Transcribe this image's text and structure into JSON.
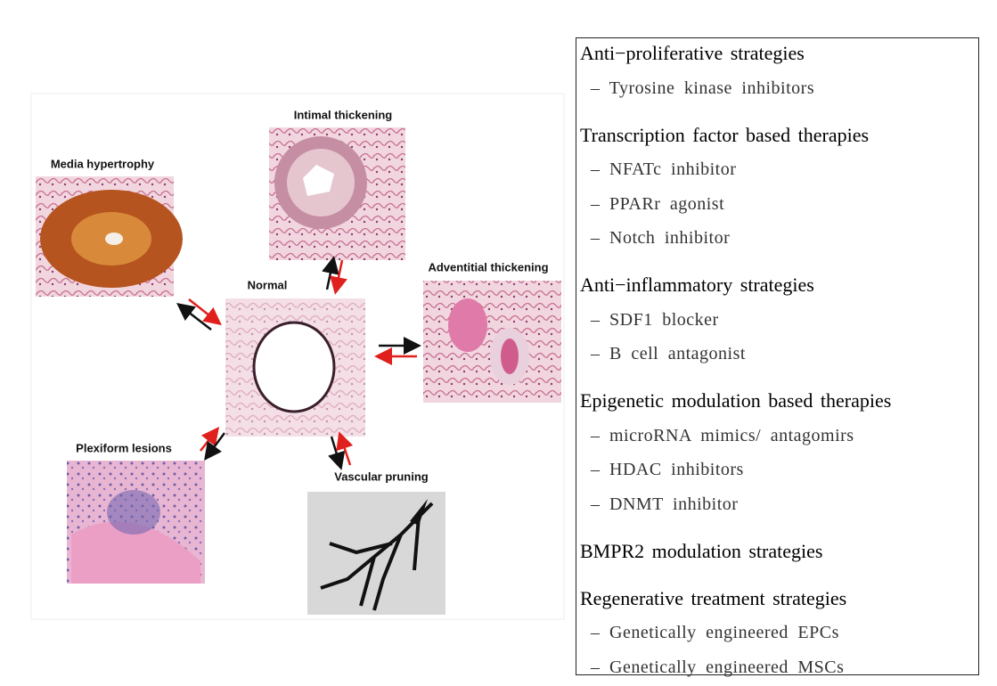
{
  "diagram": {
    "panels": [
      {
        "label": "Media hypertrophy"
      },
      {
        "label": "Intimal thickening"
      },
      {
        "label": "Normal"
      },
      {
        "label": "Adventitial thickening"
      },
      {
        "label": "Plexiform lesions"
      },
      {
        "label": "Vascular pruning"
      }
    ]
  },
  "strategies": [
    {
      "heading": "Anti−proliferative strategies",
      "items": [
        "– Tyrosine kinase inhibitors"
      ]
    },
    {
      "heading": "Transcription factor based therapies",
      "items": [
        "– NFATc inhibitor",
        "– PPARr agonist",
        "– Notch inhibitor"
      ]
    },
    {
      "heading": "Anti−inflammatory strategies",
      "items": [
        "– SDF1 blocker",
        "– B cell antagonist"
      ]
    },
    {
      "heading": "Epigenetic modulation based therapies",
      "items": [
        "– microRNA mimics/ antagomirs",
        "– HDAC inhibitors",
        "– DNMT inhibitor"
      ]
    },
    {
      "heading": "BMPR2 modulation strategies",
      "items": []
    },
    {
      "heading": "Regenerative treatment strategies",
      "items": [
        "– Genetically engineered EPCs",
        "– Genetically engineered MSCs"
      ]
    }
  ]
}
